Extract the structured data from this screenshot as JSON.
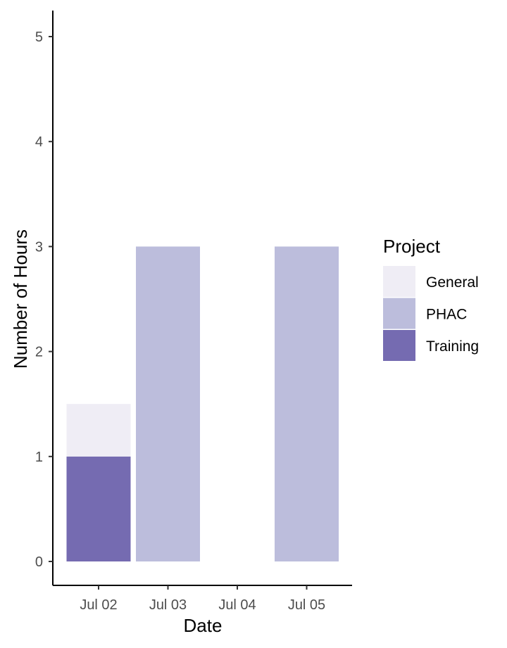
{
  "chart_data": {
    "type": "bar",
    "stacked": true,
    "categories": [
      "Jul 02",
      "Jul 03",
      "Jul 04",
      "Jul 05"
    ],
    "series": [
      {
        "name": "General",
        "values": [
          0.5,
          0,
          0,
          0
        ],
        "color": "#efedf5"
      },
      {
        "name": "PHAC",
        "values": [
          0,
          3,
          0,
          3
        ],
        "color": "#bcbddc"
      },
      {
        "name": "Training",
        "values": [
          1,
          0,
          0,
          0
        ],
        "color": "#756bb1"
      }
    ],
    "xlabel": "Date",
    "ylabel": "Number of Hours",
    "ylim": [
      0,
      5
    ],
    "yticks": [
      0,
      1,
      2,
      3,
      4,
      5
    ],
    "grid": false,
    "legend": {
      "title": "Project",
      "position": "right"
    }
  }
}
